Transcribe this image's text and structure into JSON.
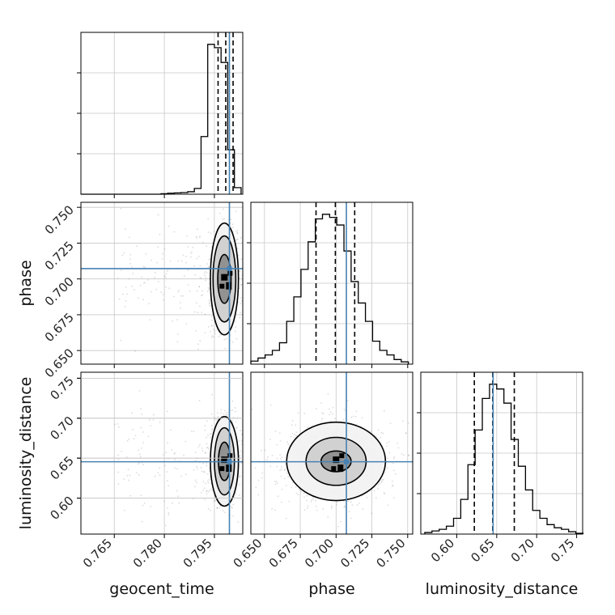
{
  "chart_data": {
    "type": "corner",
    "parameters": [
      "geocent_time",
      "phase",
      "luminosity_distance"
    ],
    "truths": {
      "geocent_time": 0.7995,
      "phase": 0.7072,
      "luminosity_distance": 0.6455
    },
    "ranges": {
      "geocent_time": [
        0.755,
        0.8035
      ],
      "phase": [
        0.6405,
        0.7535
      ],
      "luminosity_distance": [
        0.555,
        0.7575
      ]
    },
    "ticks": {
      "geocent_time": [
        0.765,
        0.78,
        0.795
      ],
      "phase": [
        0.65,
        0.675,
        0.7,
        0.725,
        0.75
      ],
      "luminosity_distance": [
        0.6,
        0.65,
        0.7,
        0.75
      ]
    },
    "tick_labels": {
      "geocent_time": [
        "0.765",
        "0.780",
        "0.795"
      ],
      "phase": [
        "0.650",
        "0.675",
        "0.700",
        "0.725",
        "0.750"
      ],
      "luminosity_distance": [
        "0.60",
        "0.65",
        "0.70",
        "0.75"
      ]
    },
    "tick_labels_y": {
      "phase": [
        "0.650",
        "0.675",
        "0.700",
        "0.725",
        "0.750"
      ],
      "luminosity_distance": [
        "0.60",
        "0.65",
        "0.70",
        "0.75"
      ]
    },
    "quantiles": {
      "geocent_time": [
        0.7961,
        0.7984,
        0.8006
      ],
      "phase": [
        0.686,
        0.6995,
        0.713
      ],
      "luminosity_distance": [
        0.622,
        0.645,
        0.672
      ]
    },
    "histograms": {
      "geocent_time": {
        "edges": [
          0.755,
          0.757,
          0.759,
          0.761,
          0.763,
          0.765,
          0.767,
          0.769,
          0.771,
          0.773,
          0.775,
          0.777,
          0.779,
          0.781,
          0.783,
          0.785,
          0.787,
          0.789,
          0.791,
          0.793,
          0.795,
          0.797,
          0.799,
          0.801,
          0.803
        ],
        "counts": [
          0,
          0,
          0,
          0,
          0,
          0,
          0,
          0,
          0,
          0,
          0,
          0,
          0.3,
          0.6,
          0.8,
          1.0,
          1.5,
          3.5,
          35,
          91,
          89,
          80,
          27,
          4
        ]
      },
      "phase": {
        "edges": [
          0.6405,
          0.6455,
          0.6505,
          0.6555,
          0.6605,
          0.6655,
          0.6705,
          0.6755,
          0.6805,
          0.6855,
          0.6905,
          0.6955,
          0.7005,
          0.7055,
          0.7105,
          0.7155,
          0.7205,
          0.7255,
          0.7305,
          0.7355,
          0.7405,
          0.7455,
          0.7505
        ],
        "counts": [
          2,
          4,
          6,
          9,
          14,
          28,
          44,
          62,
          80,
          95,
          98,
          96,
          91,
          74,
          54,
          40,
          28,
          15,
          9,
          6,
          3,
          1.5
        ]
      },
      "luminosity_distance": {
        "edges": [
          0.56,
          0.569,
          0.578,
          0.587,
          0.596,
          0.605,
          0.614,
          0.623,
          0.632,
          0.641,
          0.65,
          0.659,
          0.668,
          0.677,
          0.686,
          0.695,
          0.704,
          0.713,
          0.722,
          0.731,
          0.74,
          0.749,
          0.758
        ],
        "counts": [
          1,
          2,
          3,
          5,
          10,
          22,
          44,
          66,
          86,
          95,
          92,
          83,
          60,
          43,
          28,
          15,
          10,
          6,
          4,
          3,
          1.5,
          0.5
        ]
      }
    },
    "pairs": [
      {
        "x": "geocent_time",
        "y": "phase",
        "mean": [
          0.798,
          0.7
        ],
        "sd": [
          0.0018,
          0.0155
        ],
        "rho": 0.1,
        "levels": [
          [
            0.002,
            0.017
          ],
          [
            0.0034,
            0.03
          ],
          [
            0.0042,
            0.039
          ]
        ]
      },
      {
        "x": "geocent_time",
        "y": "luminosity_distance",
        "mean": [
          0.798,
          0.646
        ],
        "sd": [
          0.0018,
          0.022
        ],
        "rho": 0.0,
        "levels": [
          [
            0.0018,
            0.024
          ],
          [
            0.003,
            0.042
          ],
          [
            0.0042,
            0.056
          ]
        ]
      },
      {
        "x": "phase",
        "y": "luminosity_distance",
        "mean": [
          0.7,
          0.646
        ],
        "sd": [
          0.0155,
          0.022
        ],
        "rho": 0.0,
        "levels": [
          [
            0.0105,
            0.013
          ],
          [
            0.021,
            0.03
          ],
          [
            0.0345,
            0.049
          ]
        ]
      }
    ],
    "axis_labels": {
      "x": [
        "geocent_time",
        "phase",
        "luminosity_distance"
      ],
      "y": [
        "phase",
        "luminosity_distance"
      ]
    },
    "colors": {
      "truth": "#4682b4",
      "hist": "#000000",
      "grid": "#c8c8c8",
      "points": "#9a9a9a"
    }
  }
}
